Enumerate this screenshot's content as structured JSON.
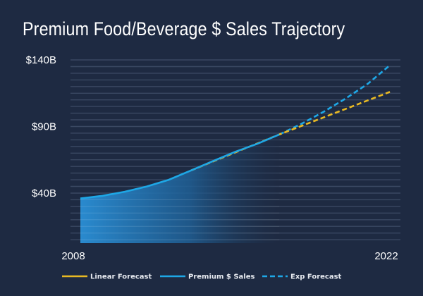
{
  "chart_data": {
    "type": "line",
    "title": "Premium Food/Beverage $ Sales Trajectory",
    "xlabel": "",
    "ylabel": "",
    "x_ticks": [
      "2008",
      "2022"
    ],
    "y_ticks": [
      {
        "value": 140,
        "label": "$140B"
      },
      {
        "value": 90,
        "label": "$90B"
      },
      {
        "value": 40,
        "label": "$40B"
      }
    ],
    "xlim": [
      2008,
      2022
    ],
    "ylim": [
      2,
      140
    ],
    "grid": true,
    "legend_position": "bottom",
    "series": [
      {
        "name": "Premium $ Sales",
        "style": "solid-area",
        "color": "#1ea7e6",
        "x": [
          2008,
          2009,
          2010,
          2011,
          2012,
          2013,
          2014,
          2015,
          2016,
          2017
        ],
        "values": [
          36,
          38,
          41,
          45,
          50,
          57,
          64,
          71,
          77,
          84
        ]
      },
      {
        "name": "Linear Forecast",
        "style": "dashed",
        "color": "#e8b923",
        "x": [
          2013,
          2017,
          2022
        ],
        "values": [
          57,
          84,
          116
        ]
      },
      {
        "name": "Exp Forecast",
        "style": "dashed",
        "color": "#1ea7e6",
        "x": [
          2017,
          2018,
          2019,
          2020,
          2021,
          2022
        ],
        "values": [
          84,
          92,
          101,
          111,
          122,
          136
        ]
      }
    ]
  },
  "legend": [
    {
      "label": "Linear Forecast",
      "color": "#e8b923",
      "style": "solid"
    },
    {
      "label": "Premium $ Sales",
      "color": "#1ea7e6",
      "style": "solid"
    },
    {
      "label": "Exp Forecast",
      "color": "#1ea7e6",
      "style": "dashed"
    }
  ]
}
